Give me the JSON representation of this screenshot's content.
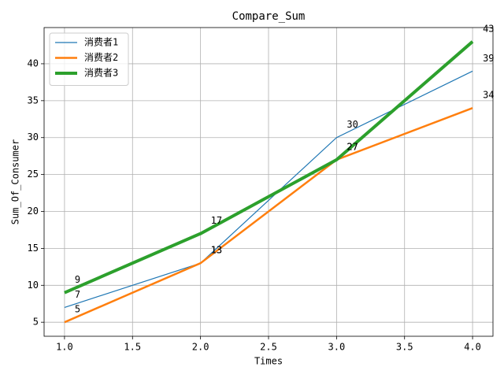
{
  "chart_data": {
    "type": "line",
    "title": "Compare_Sum",
    "x_label": "Times",
    "y_label": "Sum_Of_Consumer",
    "x": [
      1,
      2,
      3,
      4
    ],
    "series": [
      {
        "name": "消费者1",
        "color": "#1f77b4",
        "width": 1.2,
        "values": [
          7,
          13,
          30,
          39
        ]
      },
      {
        "name": "消费者2",
        "color": "#ff7f0e",
        "width": 2.5,
        "values": [
          5,
          13,
          27,
          34
        ]
      },
      {
        "name": "消费者3",
        "color": "#2ca02c",
        "width": 4,
        "values": [
          9,
          17,
          27,
          43
        ]
      }
    ],
    "xlim": [
      0.85,
      4.15
    ],
    "xticks": [
      {
        "value": 1,
        "label": "1.0"
      },
      {
        "value": 1.5,
        "label": "1.5"
      },
      {
        "value": 2,
        "label": "2.0"
      },
      {
        "value": 2.5,
        "label": "2.5"
      },
      {
        "value": 3,
        "label": "3.0"
      },
      {
        "value": 3.5,
        "label": "3.5"
      },
      {
        "value": 4,
        "label": "4.0"
      }
    ],
    "ylim": [
      3.1,
      44.9
    ],
    "yticks": [
      5,
      10,
      15,
      20,
      25,
      30,
      35,
      40
    ],
    "grid": true,
    "legend": "upper-left",
    "data_labels": true
  }
}
